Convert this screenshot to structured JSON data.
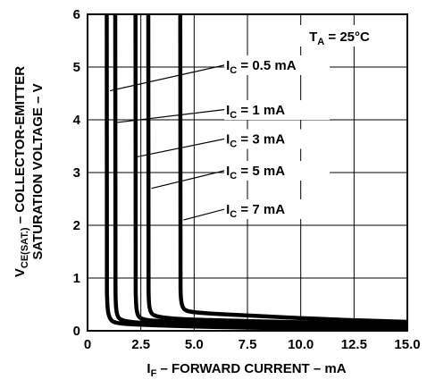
{
  "chart_data": {
    "type": "line",
    "xlabel": {
      "main": "I",
      "sub": "F",
      "rest": " – FORWARD CURRENT – mA"
    },
    "ylabel": {
      "line1_main": "V",
      "line1_sub": "CE(SAT.)",
      "line1_rest": " – COLLECTOR-EMITTER",
      "line2": "SATURATION VOLTAGE – V"
    },
    "xlim": [
      0,
      15
    ],
    "ylim": [
      0,
      6
    ],
    "x_ticks": [
      {
        "value": 0,
        "label": "0"
      },
      {
        "value": 2.5,
        "label": "2.5"
      },
      {
        "value": 5,
        "label": "5.0"
      },
      {
        "value": 7.5,
        "label": "7.5"
      },
      {
        "value": 10,
        "label": "10.0"
      },
      {
        "value": 12.5,
        "label": "12.5"
      },
      {
        "value": 15,
        "label": "15.0"
      }
    ],
    "y_ticks": [
      {
        "value": 0,
        "label": "0"
      },
      {
        "value": 1,
        "label": "1"
      },
      {
        "value": 2,
        "label": "2"
      },
      {
        "value": 3,
        "label": "3"
      },
      {
        "value": 4,
        "label": "4"
      },
      {
        "value": 5,
        "label": "5"
      },
      {
        "value": 6,
        "label": "6"
      }
    ],
    "grid": true,
    "condition": {
      "main": "T",
      "sub": "A",
      "rest": " = 25°C"
    },
    "series": [
      {
        "label_main": "I",
        "label_sub": "C",
        "label_rest": " = 0.5 mA",
        "label_pos": [
          6.5,
          4.95
        ],
        "pointer_to": [
          1.05,
          4.55
        ],
        "x": [
          0.9,
          0.9,
          0.92,
          0.98,
          1.1,
          1.3,
          2.0,
          5,
          10,
          15
        ],
        "y": [
          6,
          1.0,
          0.5,
          0.3,
          0.2,
          0.15,
          0.12,
          0.08,
          0.04,
          0.02
        ]
      },
      {
        "label_main": "I",
        "label_sub": "C",
        "label_rest": " = 1 mA",
        "label_pos": [
          6.5,
          4.1
        ],
        "pointer_to": [
          1.4,
          3.95
        ],
        "x": [
          1.3,
          1.3,
          1.32,
          1.38,
          1.5,
          1.8,
          2.5,
          5,
          10,
          15
        ],
        "y": [
          6,
          1.0,
          0.5,
          0.3,
          0.22,
          0.18,
          0.15,
          0.12,
          0.07,
          0.05
        ]
      },
      {
        "label_main": "I",
        "label_sub": "C",
        "label_rest": " = 3 mA",
        "label_pos": [
          6.5,
          3.55
        ],
        "pointer_to": [
          2.35,
          3.3
        ],
        "x": [
          2.25,
          2.25,
          2.27,
          2.33,
          2.45,
          2.8,
          3.5,
          5,
          10,
          15
        ],
        "y": [
          6,
          1.0,
          0.5,
          0.32,
          0.24,
          0.2,
          0.18,
          0.16,
          0.12,
          0.09
        ]
      },
      {
        "label_main": "I",
        "label_sub": "C",
        "label_rest": " = 5 mA",
        "label_pos": [
          6.5,
          2.95
        ],
        "pointer_to": [
          3.0,
          2.7
        ],
        "x": [
          2.85,
          2.85,
          2.87,
          2.93,
          3.05,
          3.4,
          4.0,
          5,
          10,
          15
        ],
        "y": [
          6,
          1.0,
          0.55,
          0.38,
          0.3,
          0.26,
          0.23,
          0.21,
          0.16,
          0.13
        ]
      },
      {
        "label_main": "I",
        "label_sub": "C",
        "label_rest": " = 7 mA",
        "label_pos": [
          6.5,
          2.22
        ],
        "pointer_to": [
          4.5,
          2.1
        ],
        "x": [
          4.35,
          4.35,
          4.37,
          4.45,
          4.6,
          5.0,
          6.0,
          8,
          11,
          15
        ],
        "y": [
          6,
          1.0,
          0.6,
          0.45,
          0.38,
          0.35,
          0.32,
          0.28,
          0.22,
          0.17
        ]
      }
    ]
  }
}
